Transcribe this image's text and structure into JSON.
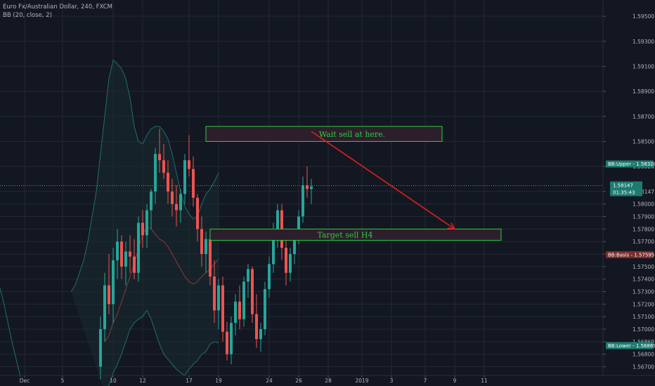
{
  "header": {
    "symbol": "Euro Fx/Australian Dollar, 240, FXCM",
    "indicator": "BB (20, close, 2)"
  },
  "colors": {
    "background": "#131722",
    "grid": "#232834",
    "up": "#26a69a",
    "down": "#ef5350",
    "band": "#1d6f6a",
    "basis": "#8a3a3a",
    "zone": "#2c1f2b",
    "zone_border": "#2ecc40",
    "arrow": "#e31e1e",
    "axis_text": "#b2b5be"
  },
  "price_axis": {
    "ticks": [
      "1.59500",
      "1.59300",
      "1.59100",
      "1.58900",
      "1.58700",
      "1.58500",
      "1.58320",
      "1.58147",
      "1.58000",
      "1.57900",
      "1.57800",
      "1.57700",
      "1.57595",
      "1.57500",
      "1.57400",
      "1.57300",
      "1.57200",
      "1.57100",
      "1.57000",
      "1.56869",
      "1.56800",
      "1.56700"
    ],
    "tick_values": [
      1.595,
      1.593,
      1.591,
      1.589,
      1.587,
      1.585,
      1.583,
      1.581,
      1.58,
      1.579,
      1.578,
      1.577,
      1.576,
      1.575,
      1.574,
      1.573,
      1.572,
      1.571,
      1.57,
      1.569,
      1.568,
      1.567
    ],
    "ylim": [
      1.5663,
      1.5963
    ]
  },
  "time_axis": {
    "labels": [
      {
        "text": "Dec",
        "bar": 4
      },
      {
        "text": "5",
        "bar": 13
      },
      {
        "text": "10",
        "bar": 25
      },
      {
        "text": "12",
        "bar": 32
      },
      {
        "text": "17",
        "bar": 43
      },
      {
        "text": "19",
        "bar": 50
      },
      {
        "text": "24",
        "bar": 62
      },
      {
        "text": "26",
        "bar": 69
      },
      {
        "text": "28",
        "bar": 76
      },
      {
        "text": "2019",
        "bar": 84
      },
      {
        "text": "3",
        "bar": 91
      },
      {
        "text": "7",
        "bar": 99
      },
      {
        "text": "9",
        "bar": 106
      },
      {
        "text": "11",
        "bar": 113
      }
    ]
  },
  "current_price": {
    "label": "1.58147",
    "value": 1.58147,
    "countdown": "01:35:43"
  },
  "bb_tags": {
    "upper": {
      "label": "BB:Upper - 1.58320",
      "value": 1.5832
    },
    "basis": {
      "label": "BB:Basis - 1.57595",
      "value": 1.57595
    },
    "lower": {
      "label": "BB:Lower - 1.56869",
      "value": 1.56869
    }
  },
  "annotations": {
    "wait_zone": {
      "text": "Wait sell at here.",
      "top": 1.5862,
      "bottom": 1.585,
      "start_bar": 47,
      "end_bar": 103
    },
    "target_zone": {
      "text": "Target sell H4",
      "top": 1.578,
      "bottom": 1.5771,
      "start_bar": 48,
      "end_bar": 117
    },
    "arrow": {
      "from": {
        "bar": 72,
        "price": 1.5858
      },
      "to": {
        "bar": 106,
        "price": 1.578
      }
    }
  },
  "chart_data": {
    "type": "candlestick",
    "title": "",
    "xlabel": "",
    "ylabel": "",
    "ylim": [
      1.5663,
      1.5963
    ],
    "bar_count": 117,
    "candles": [
      [
        1.567,
        1.571,
        1.566,
        1.57
      ],
      [
        1.57,
        1.5745,
        1.569,
        1.5735
      ],
      [
        1.5735,
        1.576,
        1.5712,
        1.572
      ],
      [
        1.572,
        1.5765,
        1.5705,
        1.5755
      ],
      [
        1.5755,
        1.578,
        1.574,
        1.577
      ],
      [
        1.577,
        1.5775,
        1.574,
        1.575
      ],
      [
        1.575,
        1.577,
        1.5735,
        1.5762
      ],
      [
        1.5762,
        1.5775,
        1.5745,
        1.5758
      ],
      [
        1.5758,
        1.5772,
        1.574,
        1.5745
      ],
      [
        1.5745,
        1.579,
        1.5738,
        1.5785
      ],
      [
        1.5785,
        1.5795,
        1.5765,
        1.5775
      ],
      [
        1.5775,
        1.58,
        1.5765,
        1.5795
      ],
      [
        1.5795,
        1.5812,
        1.578,
        1.581
      ],
      [
        1.581,
        1.5845,
        1.58,
        1.584
      ],
      [
        1.584,
        1.586,
        1.5825,
        1.5835
      ],
      [
        1.5835,
        1.5848,
        1.582,
        1.5825
      ],
      [
        1.5825,
        1.5835,
        1.58,
        1.581
      ],
      [
        1.581,
        1.582,
        1.579,
        1.58
      ],
      [
        1.58,
        1.5815,
        1.5782,
        1.5795
      ],
      [
        1.5795,
        1.5812,
        1.5785,
        1.5808
      ],
      [
        1.5808,
        1.584,
        1.58,
        1.5835
      ],
      [
        1.5835,
        1.5855,
        1.5822,
        1.5828
      ],
      [
        1.5828,
        1.5838,
        1.5798,
        1.5805
      ],
      [
        1.5805,
        1.5808,
        1.577,
        1.578
      ],
      [
        1.578,
        1.579,
        1.575,
        1.576
      ],
      [
        1.576,
        1.5778,
        1.5745,
        1.5772
      ],
      [
        1.5772,
        1.5776,
        1.5735,
        1.5742
      ],
      [
        1.5742,
        1.5755,
        1.5705,
        1.5715
      ],
      [
        1.5715,
        1.574,
        1.57,
        1.5735
      ],
      [
        1.5735,
        1.5742,
        1.569,
        1.5698
      ],
      [
        1.5698,
        1.5706,
        1.5675,
        1.568
      ],
      [
        1.568,
        1.571,
        1.5672,
        1.5705
      ],
      [
        1.5705,
        1.5728,
        1.5695,
        1.5722
      ],
      [
        1.5722,
        1.5735,
        1.57,
        1.5708
      ],
      [
        1.5708,
        1.5742,
        1.5702,
        1.5738
      ],
      [
        1.5738,
        1.5752,
        1.5725,
        1.5748
      ],
      [
        1.5748,
        1.575,
        1.5705,
        1.5712
      ],
      [
        1.5712,
        1.5728,
        1.5685,
        1.5692
      ],
      [
        1.5692,
        1.5705,
        1.5682,
        1.57
      ],
      [
        1.57,
        1.5738,
        1.5695,
        1.5732
      ],
      [
        1.5732,
        1.5758,
        1.5725,
        1.5752
      ],
      [
        1.5752,
        1.5785,
        1.5745,
        1.5778
      ],
      [
        1.5778,
        1.58,
        1.5765,
        1.5795
      ],
      [
        1.5795,
        1.58,
        1.5755,
        1.5765
      ],
      [
        1.5765,
        1.5772,
        1.5735,
        1.5745
      ],
      [
        1.5745,
        1.5765,
        1.5738,
        1.576
      ],
      [
        1.576,
        1.5778,
        1.5752,
        1.5772
      ],
      [
        1.5772,
        1.5795,
        1.5768,
        1.579
      ],
      [
        1.579,
        1.5822,
        1.5785,
        1.5815
      ],
      [
        1.5815,
        1.583,
        1.5805,
        1.5812
      ],
      [
        1.5812,
        1.582,
        1.58,
        1.5814
      ]
    ],
    "bb_upper": [
      1.573,
      1.5735,
      1.5745,
      1.5755,
      1.577,
      1.579,
      1.581,
      1.584,
      1.587,
      1.59,
      1.5915,
      1.5912,
      1.5908,
      1.59,
      1.5885,
      1.5862,
      1.585,
      1.5848,
      1.5855,
      1.586,
      1.5862,
      1.5862,
      1.5858,
      1.5852,
      1.584,
      1.5825,
      1.581,
      1.5798,
      1.5792,
      1.5788,
      1.579,
      1.58,
      1.5808,
      1.5812,
      1.5818,
      1.5825
    ],
    "bb_basis": [
      1.569,
      1.5695,
      1.5705,
      1.5712,
      1.5722,
      1.5732,
      1.5742,
      1.5752,
      1.5765,
      1.5775,
      1.5782,
      1.578,
      1.5776,
      1.5772,
      1.577,
      1.5766,
      1.576,
      1.5754,
      1.5748,
      1.5742,
      1.5738,
      1.5736,
      1.5738,
      1.5742,
      1.5745,
      1.5748,
      1.5752,
      1.5756
    ],
    "bb_lower": [
      1.565,
      1.5655,
      1.5665,
      1.5672,
      1.568,
      1.569,
      1.57,
      1.5705,
      1.5708,
      1.571,
      1.5715,
      1.5708,
      1.5698,
      1.5688,
      1.568,
      1.5676,
      1.5672,
      1.5668,
      1.5665,
      1.5663,
      1.5668,
      1.5672,
      1.5675,
      1.568,
      1.5682,
      1.5688,
      1.569,
      1.5689
    ]
  }
}
